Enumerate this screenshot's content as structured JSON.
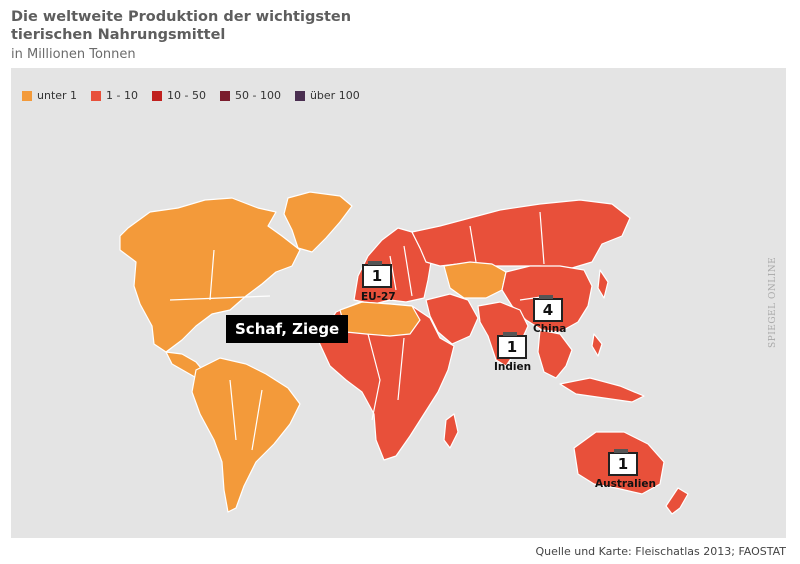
{
  "header": {
    "title": "Die weltweite Produktion der wichtigsten tierischen Nahrungsmittel",
    "subtitle": "in Millionen Tonnen"
  },
  "legend": {
    "items": [
      {
        "label": "unter 1",
        "color": "#f39a3a"
      },
      {
        "label": "1 - 10",
        "color": "#e8503a"
      },
      {
        "label": "10 - 50",
        "color": "#c0201e"
      },
      {
        "label": "50 - 100",
        "color": "#7a1c2c"
      },
      {
        "label": "über 100",
        "color": "#4a2e50"
      }
    ]
  },
  "map": {
    "theme_label": "Schaf, Ziege",
    "land_colors": {
      "low": "#f39a3a",
      "mid": "#e8503a",
      "border": "#ffffff"
    },
    "regions": [
      {
        "name": "EU-27",
        "value": "1"
      },
      {
        "name": "China",
        "value": "4"
      },
      {
        "name": "Indien",
        "value": "1"
      },
      {
        "name": "Australien",
        "value": "1"
      }
    ]
  },
  "watermark": "SPIEGEL ONLINE",
  "footer": {
    "source": "Quelle und Karte: Fleischatlas 2013; FAOSTAT"
  }
}
